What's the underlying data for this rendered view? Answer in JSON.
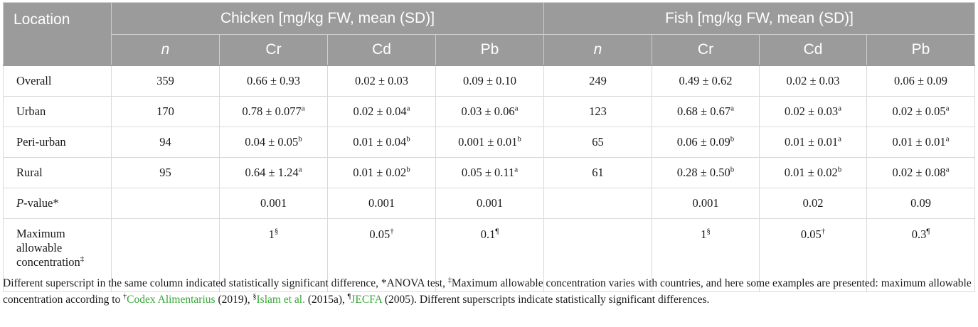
{
  "header": {
    "location": "Location",
    "chicken": "Chicken [mg/kg FW, mean (SD)]",
    "fish": "Fish [mg/kg FW, mean (SD)]",
    "n": "n",
    "cr": "Cr",
    "cd": "Cd",
    "pb": "Pb"
  },
  "rows": [
    {
      "label": "Overall",
      "c_n": "359",
      "c_cr": "0.66 ± 0.93",
      "c_cr_sup": "",
      "c_cd": "0.02 ± 0.03",
      "c_cd_sup": "",
      "c_pb": "0.09 ± 0.10",
      "c_pb_sup": "",
      "f_n": "249",
      "f_cr": "0.49 ± 0.62",
      "f_cr_sup": "",
      "f_cd": "0.02 ± 0.03",
      "f_cd_sup": "",
      "f_pb": "0.06 ± 0.09",
      "f_pb_sup": ""
    },
    {
      "label": "Urban",
      "c_n": "170",
      "c_cr": "0.78 ± 0.077",
      "c_cr_sup": "a",
      "c_cd": "0.02 ± 0.04",
      "c_cd_sup": "a",
      "c_pb": "0.03 ± 0.06",
      "c_pb_sup": "a",
      "f_n": "123",
      "f_cr": "0.68 ± 0.67",
      "f_cr_sup": "a",
      "f_cd": "0.02 ± 0.03",
      "f_cd_sup": "a",
      "f_pb": "0.02 ± 0.05",
      "f_pb_sup": "a"
    },
    {
      "label": "Peri-urban",
      "c_n": "94",
      "c_cr": "0.04 ± 0.05",
      "c_cr_sup": "b",
      "c_cd": "0.01 ± 0.04",
      "c_cd_sup": "b",
      "c_pb": "0.001 ± 0.01",
      "c_pb_sup": "b",
      "f_n": "65",
      "f_cr": "0.06 ± 0.09",
      "f_cr_sup": "b",
      "f_cd": "0.01 ± 0.01",
      "f_cd_sup": "a",
      "f_pb": "0.01 ± 0.01",
      "f_pb_sup": "a"
    },
    {
      "label": "Rural",
      "c_n": "95",
      "c_cr": "0.64 ± 1.24",
      "c_cr_sup": "a",
      "c_cd": "0.01 ± 0.02",
      "c_cd_sup": "b",
      "c_pb": "0.05 ± 0.11",
      "c_pb_sup": "a",
      "f_n": "61",
      "f_cr": "0.28 ± 0.50",
      "f_cr_sup": "b",
      "f_cd": "0.01 ± 0.02",
      "f_cd_sup": "b",
      "f_pb": "0.02 ± 0.08",
      "f_pb_sup": "a"
    }
  ],
  "pvalue": {
    "label_italic": "P",
    "label_rest": "-value*",
    "c_cr": "0.001",
    "c_cd": "0.001",
    "c_pb": "0.001",
    "f_cr": "0.001",
    "f_cd": "0.02",
    "f_pb": "0.09"
  },
  "maxconc": {
    "label": "Maximum allowable concentration",
    "label_sup": "‡",
    "c_cr": "1",
    "c_cr_sup": "§",
    "c_cd": "0.05",
    "c_cd_sup": "†",
    "c_pb": "0.1",
    "c_pb_sup": "¶",
    "f_cr": "1",
    "f_cr_sup": "§",
    "f_cd": "0.05",
    "f_cd_sup": "†",
    "f_pb": "0.3",
    "f_pb_sup": "¶"
  },
  "footnote": {
    "t1": "Different superscript in the same column indicated statistically significant difference, *ANOVA test, ",
    "s1": "‡",
    "t2": "Maximum allowable concentration varies with countries, and here some examples are presented: maximum allowable concentration according to ",
    "s2": "†",
    "ref1": "Codex Alimentarius",
    "y1": " (2019), ",
    "s3": "§",
    "ref2": "Islam et al.",
    "y2": " (2015a), ",
    "s4": "¶",
    "ref3": "JECFA",
    "y3": " (2005). Different superscripts indicate statistically significant differences."
  },
  "colors": {
    "header_bg": "#9b9b9b",
    "link": "#3aa63a"
  }
}
